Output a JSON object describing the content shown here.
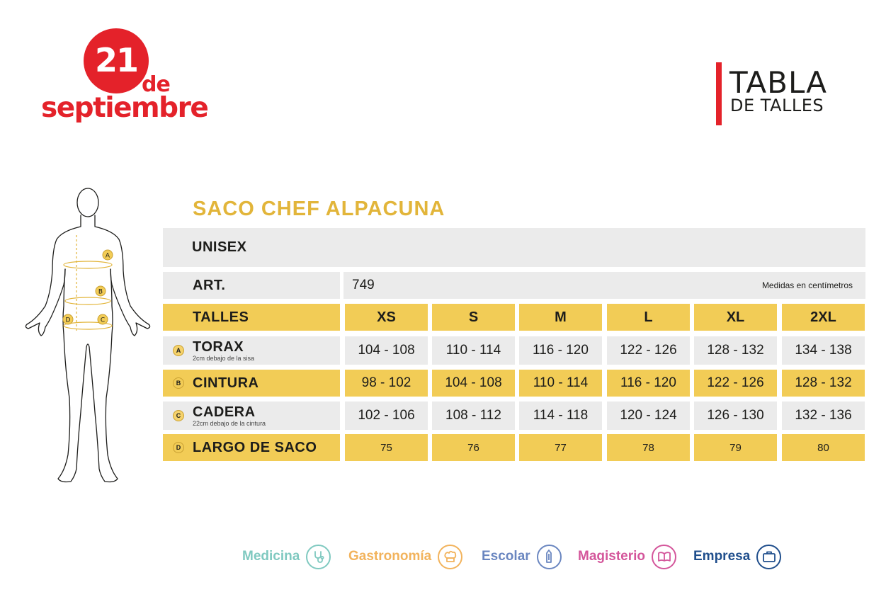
{
  "logo": {
    "number": "21",
    "de": "de",
    "month": "septiembre"
  },
  "header": {
    "title": "TABLA",
    "subtitle": "DE TALLES"
  },
  "figure": {
    "markers": [
      "A",
      "B",
      "C",
      "D"
    ]
  },
  "product": {
    "title": "SACO CHEF ALPACUNA"
  },
  "table": {
    "gender": "UNISEX",
    "art_label": "ART.",
    "art_value": "749",
    "units_note": "Medidas en centímetros",
    "sizes_label": "TALLES",
    "sizes": [
      "XS",
      "S",
      "M",
      "L",
      "XL",
      "2XL"
    ],
    "rows": [
      {
        "marker": "A",
        "label": "TORAX",
        "note": "2cm debajo de la sisa",
        "values": [
          "104 - 108",
          "110 - 114",
          "116 - 120",
          "122 - 126",
          "128 - 132",
          "134 - 138"
        ]
      },
      {
        "marker": "B",
        "label": "CINTURA",
        "note": "",
        "values": [
          "98 - 102",
          "104 - 108",
          "110 - 114",
          "116 - 120",
          "122 - 126",
          "128 - 132"
        ]
      },
      {
        "marker": "C",
        "label": "CADERA",
        "note": "22cm debajo de la cintura",
        "values": [
          "102 - 106",
          "108 - 112",
          "114 - 118",
          "120 - 124",
          "126 - 130",
          "132 - 136"
        ]
      },
      {
        "marker": "D",
        "label": "LARGO DE SACO",
        "note": "",
        "values": [
          "75",
          "76",
          "77",
          "78",
          "79",
          "80"
        ]
      }
    ]
  },
  "footer": {
    "categories": [
      {
        "label": "Medicina",
        "icon": "stethoscope-icon",
        "color": "#7fc9c0"
      },
      {
        "label": "Gastronomía",
        "icon": "chef-hat-icon",
        "color": "#f2b35c"
      },
      {
        "label": "Escolar",
        "icon": "pencil-icon",
        "color": "#6a86c0"
      },
      {
        "label": "Magisterio",
        "icon": "book-icon",
        "color": "#d4569b"
      },
      {
        "label": "Empresa",
        "icon": "briefcase-icon",
        "color": "#1f4e8c"
      }
    ]
  },
  "colors": {
    "brand_red": "#e4222a",
    "accent_yellow": "#f2cc56",
    "title_gold": "#e2b53a",
    "row_gray": "#ebebeb"
  }
}
